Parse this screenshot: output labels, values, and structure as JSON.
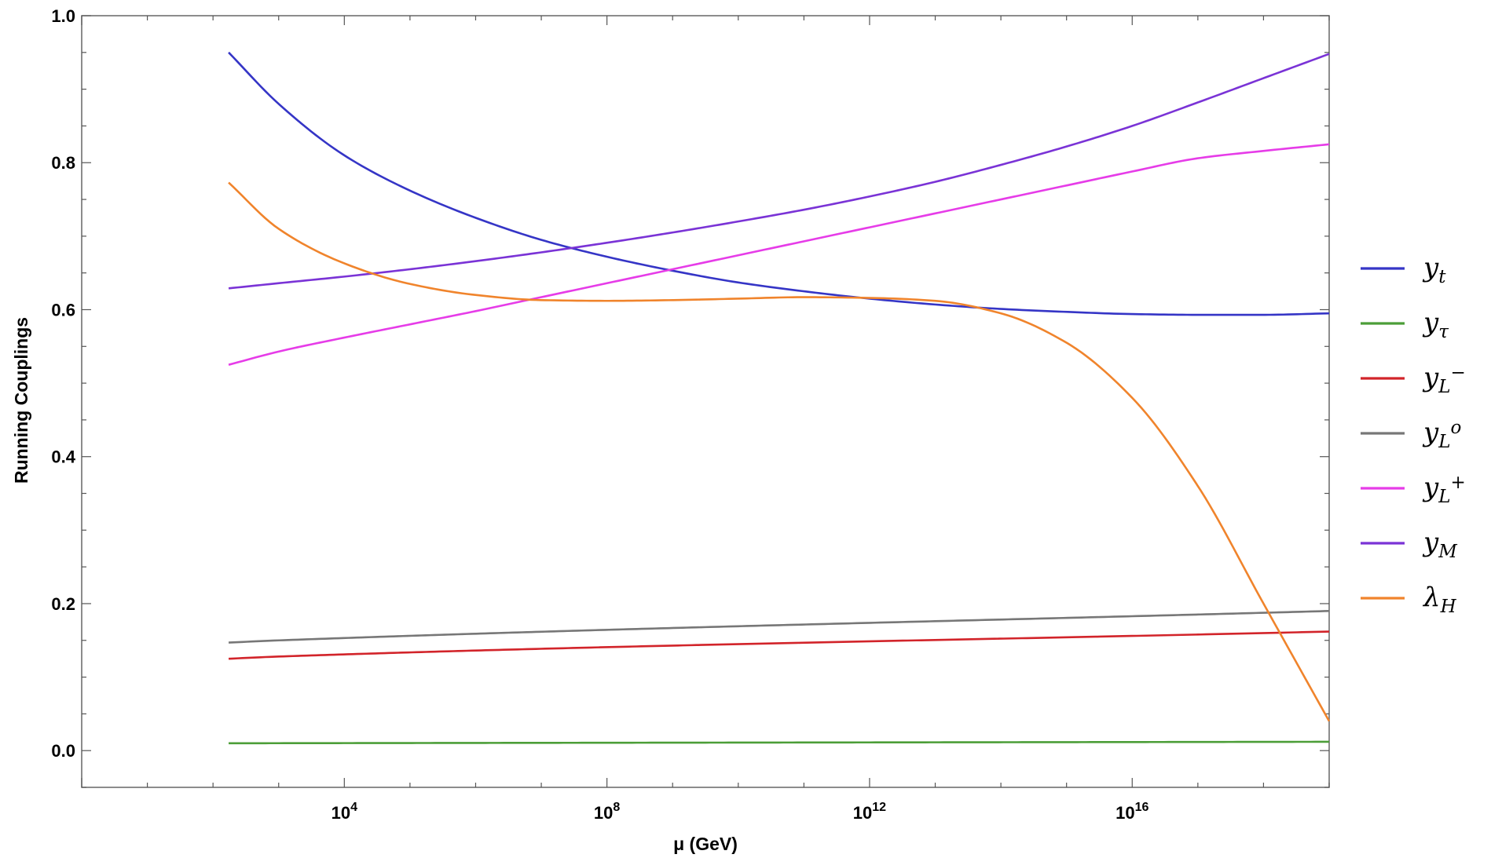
{
  "chart_data": {
    "type": "line",
    "xscale": "log",
    "xlabel": "μ (GeV)",
    "ylabel": "Running Couplings",
    "xlim": [
      1,
      1e+19
    ],
    "ylim": [
      -0.05,
      1.0
    ],
    "grid": false,
    "legend_position": "right",
    "y_ticks": [
      "0.0",
      "0.2",
      "0.4",
      "0.6",
      "0.8",
      "1.0"
    ],
    "x_ticks": [
      {
        "base": "10",
        "exp": "4"
      },
      {
        "base": "10",
        "exp": "8"
      },
      {
        "base": "10",
        "exp": "12"
      },
      {
        "base": "10",
        "exp": "16"
      }
    ],
    "series": [
      {
        "name": "y_t",
        "symbol": "y",
        "sub": "t",
        "sup": "",
        "color": "#3535c6",
        "x": [
          173,
          1000.0,
          10000.0,
          100000.0,
          1000000.0,
          10000000.0,
          100000000.0,
          1000000000.0,
          10000000000.0,
          100000000000.0,
          1000000000000.0,
          10000000000000.0,
          100000000000000.0,
          1000000000000000.0,
          1e+16,
          1e+17,
          1e+18,
          1e+19
        ],
        "y": [
          0.95,
          0.88,
          0.81,
          0.762,
          0.725,
          0.695,
          0.672,
          0.653,
          0.637,
          0.625,
          0.615,
          0.607,
          0.601,
          0.597,
          0.594,
          0.593,
          0.593,
          0.595
        ]
      },
      {
        "name": "y_τ",
        "symbol": "y",
        "sub": "τ",
        "sup": "",
        "color": "#4c9e38",
        "x": [
          173,
          1e+19
        ],
        "y": [
          0.01,
          0.012
        ]
      },
      {
        "name": "y_L−",
        "symbol": "y",
        "sub": "L",
        "sup": "−",
        "color": "#d2242a",
        "x": [
          173,
          1000.0,
          1e+19
        ],
        "y": [
          0.125,
          0.128,
          0.162
        ]
      },
      {
        "name": "y_Lo",
        "symbol": "y",
        "sub": "L",
        "sup": "o",
        "color": "#777777",
        "x": [
          173,
          1000.0,
          1e+19
        ],
        "y": [
          0.147,
          0.15,
          0.19
        ]
      },
      {
        "name": "y_L+",
        "symbol": "y",
        "sub": "L",
        "sup": "+",
        "color": "#e63ce8",
        "x": [
          173,
          1000.0,
          10000.0,
          100000.0,
          1000000.0,
          10000000.0,
          100000000.0,
          1000000000.0,
          10000000000.0,
          100000000000.0,
          1000000000000.0,
          10000000000000.0,
          100000000000000.0,
          1000000000000000.0,
          1e+16,
          1e+17,
          1e+18,
          1e+19
        ],
        "y": [
          0.525,
          0.543,
          0.562,
          0.58,
          0.598,
          0.617,
          0.636,
          0.655,
          0.674,
          0.693,
          0.712,
          0.731,
          0.75,
          0.769,
          0.788,
          0.806,
          0.816,
          0.825
        ]
      },
      {
        "name": "y_M",
        "symbol": "y",
        "sub": "M",
        "sup": "",
        "color": "#7a33d6",
        "x": [
          173,
          1000.0,
          10000.0,
          100000.0,
          1000000.0,
          10000000.0,
          100000000.0,
          1000000000.0,
          10000000000.0,
          100000000000.0,
          1000000000000.0,
          10000000000000.0,
          100000000000000.0,
          1000000000000000.0,
          1e+16,
          1e+17,
          1e+18,
          1e+19
        ],
        "y": [
          0.629,
          0.636,
          0.645,
          0.655,
          0.666,
          0.678,
          0.691,
          0.705,
          0.72,
          0.736,
          0.754,
          0.774,
          0.797,
          0.822,
          0.85,
          0.882,
          0.915,
          0.948
        ]
      },
      {
        "name": "λ_H",
        "symbol": "λ",
        "sub": "H",
        "sup": "",
        "color": "#f0842c",
        "x": [
          173,
          1000.0,
          10000.0,
          100000.0,
          1000000.0,
          10000000.0,
          100000000.0,
          1000000000.0,
          10000000000.0,
          100000000000.0,
          1000000000000.0,
          10000000000000.0,
          100000000000000.0,
          1000000000000000.0,
          1e+16,
          1e+17,
          1e+18,
          1e+19
        ],
        "y": [
          0.773,
          0.71,
          0.663,
          0.635,
          0.62,
          0.613,
          0.612,
          0.613,
          0.615,
          0.617,
          0.616,
          0.612,
          0.595,
          0.555,
          0.48,
          0.36,
          0.2,
          0.04
        ]
      }
    ]
  }
}
